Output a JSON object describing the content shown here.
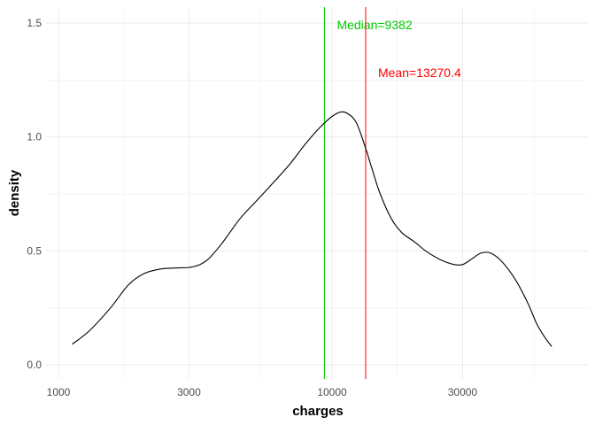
{
  "chart_data": {
    "type": "line",
    "xlabel": "charges",
    "ylabel": "density",
    "x_scale": "log10",
    "xlim": [
      1000,
      80000
    ],
    "ylim": [
      0,
      1.55
    ],
    "x_ticks": [
      1000,
      3000,
      10000,
      30000
    ],
    "x_tick_labels": [
      "1000",
      "3000",
      "10000",
      "30000"
    ],
    "y_ticks": [
      0,
      0.5,
      1,
      1.5
    ],
    "y_tick_labels": [
      "0.0",
      "0.5",
      "1.0",
      "1.5"
    ],
    "grid": true,
    "series": [
      {
        "color": "#000000",
        "x": [
          1122,
          1300,
          1550,
          1800,
          2050,
          2350,
          2700,
          3100,
          3500,
          4000,
          4600,
          5300,
          6000,
          7000,
          8000,
          9000,
          10000,
          10800,
          11500,
          12300,
          13270,
          14000,
          15000,
          16500,
          18000,
          20000,
          22000,
          25000,
          28000,
          30000,
          32000,
          35000,
          38000,
          42000,
          47000,
          52000,
          56000,
          60000,
          63500
        ],
        "y": [
          0.09,
          0.15,
          0.25,
          0.35,
          0.4,
          0.42,
          0.425,
          0.43,
          0.46,
          0.54,
          0.64,
          0.72,
          0.79,
          0.88,
          0.97,
          1.04,
          1.09,
          1.11,
          1.1,
          1.06,
          0.95,
          0.86,
          0.75,
          0.64,
          0.58,
          0.54,
          0.5,
          0.46,
          0.44,
          0.44,
          0.46,
          0.49,
          0.49,
          0.45,
          0.37,
          0.27,
          0.18,
          0.12,
          0.08
        ]
      }
    ],
    "vlines": [
      {
        "x": 9382,
        "color": "#00cc00",
        "label": "Median=9382"
      },
      {
        "x": 13270.4,
        "color": "#ff0000",
        "label": "Mean=13270.4"
      }
    ]
  }
}
